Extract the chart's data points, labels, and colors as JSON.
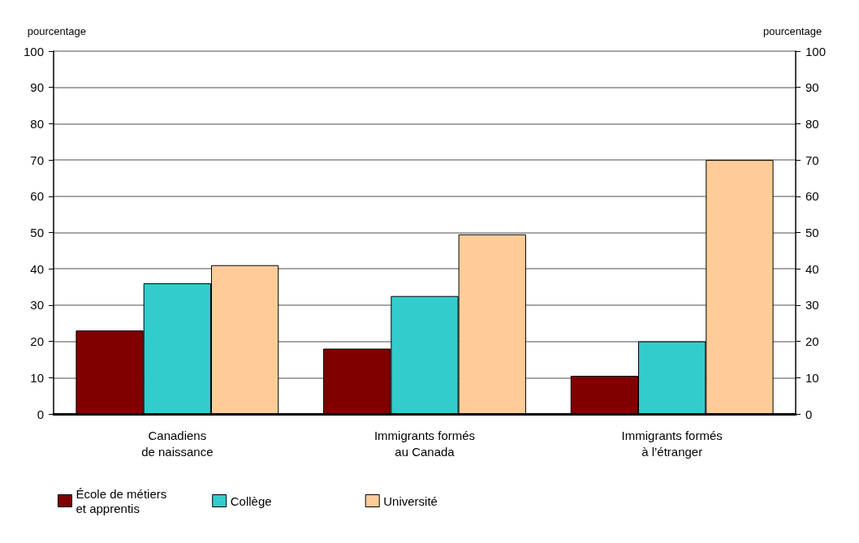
{
  "chart_data": {
    "type": "bar",
    "ylabel": "pourcentage",
    "y2label": "pourcentage",
    "categories": [
      "Canadiens\nde naissance",
      "Immigrants formés\nau Canada",
      "Immigrants formés\nà l’étranger"
    ],
    "series": [
      {
        "name": "École de métiers\net apprentis",
        "color": "#800000",
        "values": [
          23,
          18,
          10.5
        ]
      },
      {
        "name": "Collège",
        "color": "#33cccc",
        "values": [
          36,
          32.5,
          20
        ]
      },
      {
        "name": "Université",
        "color": "#ffcc99",
        "values": [
          41,
          49.5,
          70
        ]
      }
    ],
    "ylim": [
      0,
      100
    ],
    "yticks": [
      0,
      10,
      20,
      30,
      40,
      50,
      60,
      70,
      80,
      90,
      100
    ],
    "y2lim": [
      0,
      100
    ],
    "y2ticks": [
      0,
      10,
      20,
      30,
      40,
      50,
      60,
      70,
      80,
      90,
      100
    ],
    "grid": "y",
    "legend": "bottom left"
  }
}
